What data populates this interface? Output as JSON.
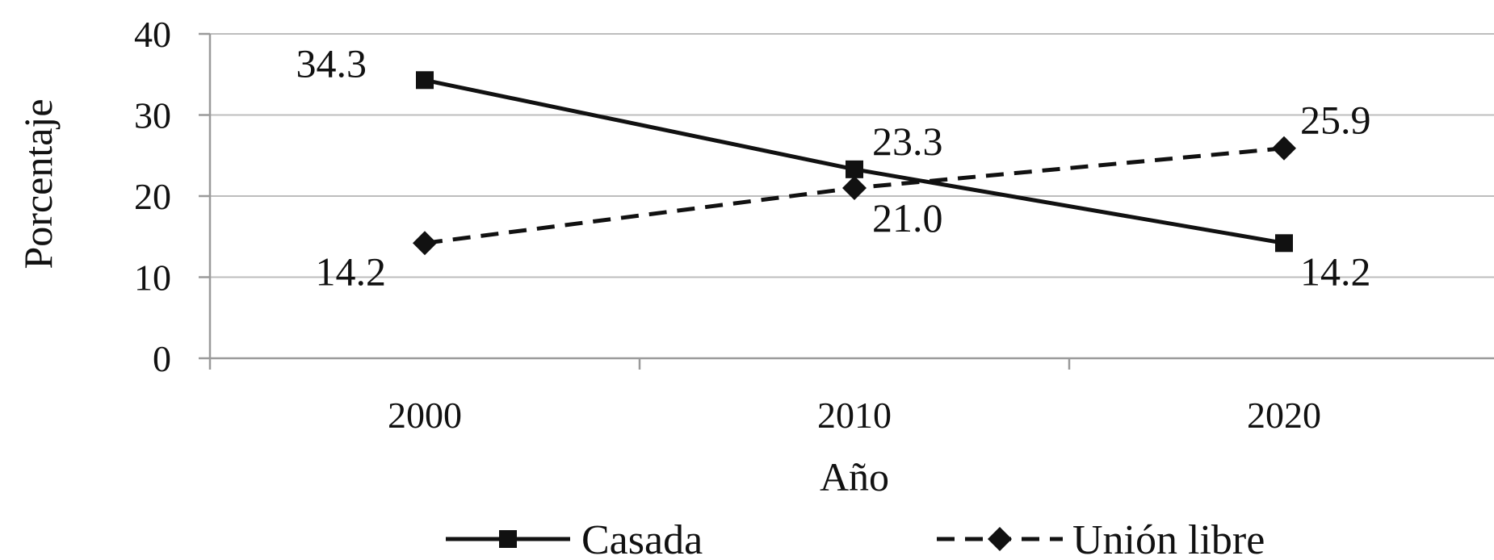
{
  "chart_data": {
    "type": "line",
    "categories": [
      "2000",
      "2010",
      "2020"
    ],
    "xlabel": "Año",
    "ylabel": "Porcentaje",
    "ylim": [
      0,
      40
    ],
    "yticks": [
      0,
      10,
      20,
      30,
      40
    ],
    "grid": true,
    "legend_position": "bottom",
    "series": [
      {
        "name": "Casada",
        "values": [
          34.3,
          23.3,
          14.2
        ],
        "labels": [
          "34.3",
          "23.3",
          "14.2"
        ],
        "line_style": "solid",
        "marker": "square",
        "color": "#111111"
      },
      {
        "name": "Unión libre",
        "values": [
          14.2,
          21.0,
          25.9
        ],
        "labels": [
          "14.2",
          "21.0",
          "25.9"
        ],
        "line_style": "dashed",
        "marker": "diamond",
        "color": "#111111"
      }
    ]
  }
}
